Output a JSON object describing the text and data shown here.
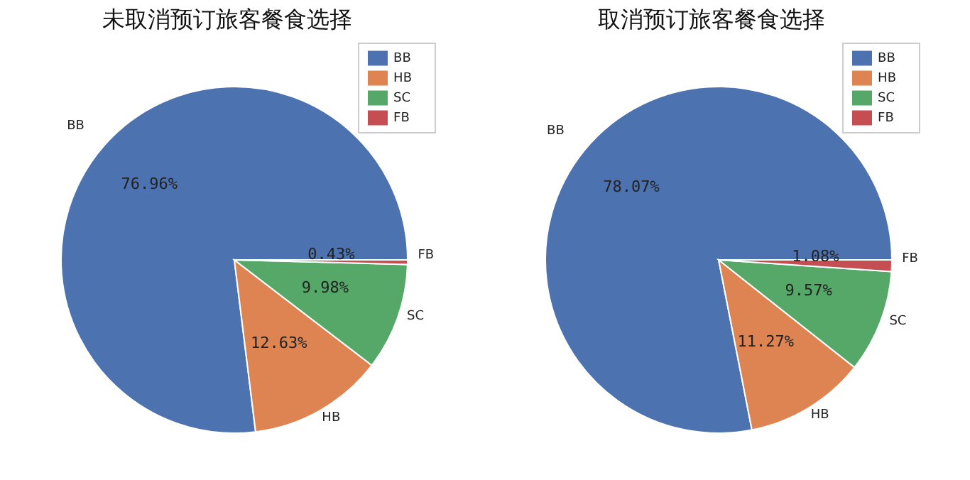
{
  "chart_data": [
    {
      "type": "pie",
      "title": "未取消预订旅客餐食选择",
      "categories": [
        "BB",
        "HB",
        "SC",
        "FB"
      ],
      "values": [
        76.96,
        12.63,
        9.98,
        0.43
      ],
      "value_labels": [
        "76.96%",
        "12.63%",
        "9.98%",
        "0.43%"
      ],
      "colors": [
        "#4c72b0",
        "#dd8452",
        "#55a868",
        "#c44e52"
      ],
      "legend": "top right"
    },
    {
      "type": "pie",
      "title": "取消预订旅客餐食选择",
      "categories": [
        "BB",
        "HB",
        "SC",
        "FB"
      ],
      "values": [
        78.07,
        11.27,
        9.57,
        1.08
      ],
      "value_labels": [
        "78.07%",
        "11.27%",
        "9.57%",
        "1.08%"
      ],
      "colors": [
        "#4c72b0",
        "#dd8452",
        "#55a868",
        "#c44e52"
      ],
      "legend": "top right"
    }
  ]
}
